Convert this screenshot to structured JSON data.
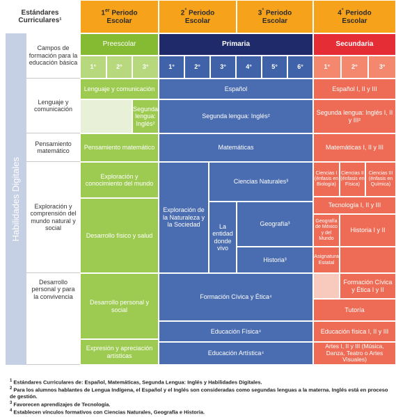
{
  "header": {
    "standards": "Estándares Curriculares¹",
    "periods": [
      {
        "number": "1",
        "suffix": "er",
        "label": "Periodo Escolar"
      },
      {
        "number": "2",
        "suffix": "°",
        "label": "Periodo Escolar"
      },
      {
        "number": "3",
        "suffix": "°",
        "label": "Periodo Escolar"
      },
      {
        "number": "4",
        "suffix": "°",
        "label": "Periodo Escolar"
      }
    ]
  },
  "campos": "Campos de formación para la educación básica",
  "side_label": "Habilidades Digitales",
  "levels": [
    {
      "name": "Preescolar",
      "grades": [
        "1°",
        "2°",
        "3°"
      ]
    },
    {
      "name": "Primaria",
      "grades": [
        "1°",
        "2°",
        "3°",
        "4°",
        "5°",
        "6°"
      ]
    },
    {
      "name": "Secundaria",
      "grades": [
        "1°",
        "2°",
        "3°"
      ]
    }
  ],
  "rows": [
    {
      "label": "Lenguaje y comunicación",
      "cells": [
        "Lenguaje y comunicación",
        "Segunda lengua: Inglés²",
        "Español",
        "Segunda lengua: Inglés²",
        "Español I, II y III",
        "Segunda lengua: Inglés I, II y III²"
      ]
    },
    {
      "label": "Pensamiento matemático",
      "cells": [
        "Pensamiento matemático",
        "Matemáticas",
        "Matemáticas I, II y III"
      ]
    },
    {
      "label": "Exploración y comprensión del mundo natural y social",
      "cells": [
        "Exploración y conocimiento del mundo",
        "Desarrollo físico y salud",
        "Exploración de la Naturaleza y la Sociedad",
        "Ciencias Naturales³",
        "La entidad donde vivo",
        "Geografía³",
        "Historia³",
        "Ciencias I (énfasis en Biología)",
        "Ciencias II (énfasis en Física)",
        "Ciencias III (énfasis en Química)",
        "Tecnología I, II y III",
        "Geografía de México y del Mundo",
        "Historia I y II",
        "Asignatura Estatal"
      ]
    },
    {
      "label": "Desarrollo personal y para la convivencia",
      "cells": [
        "Desarrollo personal y social",
        "Expresión y apreciación artísticas",
        "Formación Cívica y Ética⁴",
        "Educación Física⁴",
        "Educación Artística⁴",
        "Formación Cívica y Ética I y II",
        "Tutoría",
        "Educación física I, II y III",
        "Artes I, II y III (Música, Danza, Teatro o Artes Visuales)"
      ]
    }
  ],
  "footnotes": [
    {
      "mark": "1",
      "text": "Estándares Curriculares de: Español, Matemáticas, Segunda Lengua: Inglés y Habilidades Digitales."
    },
    {
      "mark": "2",
      "text": "Para los alumnos hablantes de Lengua Indígena, el Español y el Inglés son consideradas como segundas lenguas a la materna. Inglés está en proceso de gestión."
    },
    {
      "mark": "3",
      "text": "Favorecen aprendizajes de Tecnología."
    },
    {
      "mark": "4",
      "text": "Establecen vínculos formativos con Ciencias Naturales, Geografía e Historia."
    }
  ]
}
